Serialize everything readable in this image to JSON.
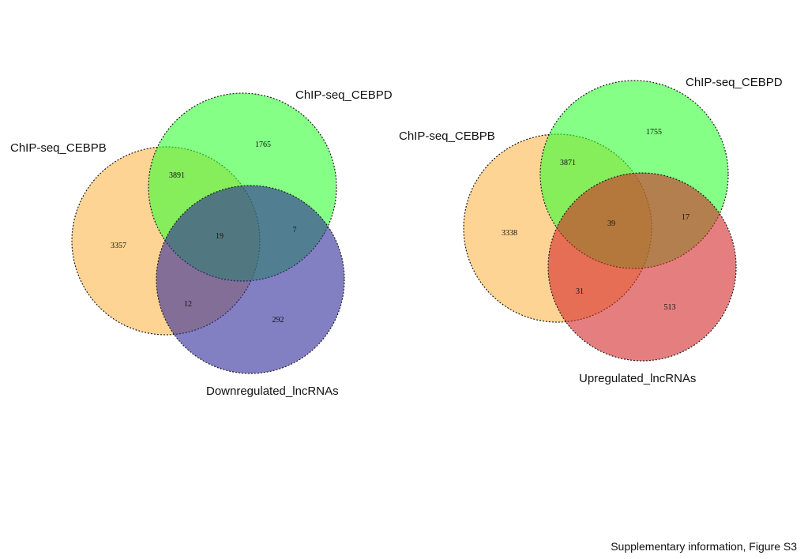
{
  "caption": "Supplementary information, Figure S3",
  "diagrams": [
    {
      "sets": [
        {
          "label": "ChIP-seq_CEBPB",
          "color": "#fdb84d"
        },
        {
          "label": "ChIP-seq_CEBPD",
          "color": "#33ff33"
        },
        {
          "label": "Downregulated_lncRNAs",
          "color": "#2e2a9a"
        }
      ],
      "regions": {
        "cebpb_only": "3357",
        "cebpd_only": "1765",
        "third_only": "292",
        "cebpb_cebpd": "3891",
        "cebpd_third": "7",
        "cebpb_third": "12",
        "all_three": "19"
      }
    },
    {
      "sets": [
        {
          "label": "ChIP-seq_CEBPB",
          "color": "#fdb84d"
        },
        {
          "label": "ChIP-seq_CEBPD",
          "color": "#33ff33"
        },
        {
          "label": "Upregulated_lncRNAs",
          "color": "#d42a2a"
        }
      ],
      "regions": {
        "cebpb_only": "3338",
        "cebpd_only": "1755",
        "third_only": "513",
        "cebpb_cebpd": "3871",
        "cebpd_third": "17",
        "cebpb_third": "31",
        "all_three": "39"
      }
    }
  ]
}
